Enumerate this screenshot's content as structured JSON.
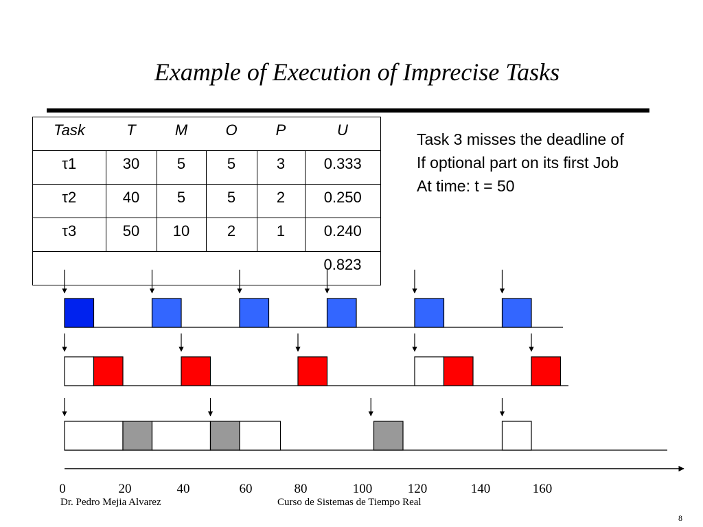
{
  "title": "Example of Execution of Imprecise Tasks",
  "table": {
    "headers": [
      "Task",
      "T",
      "M",
      "O",
      "P",
      "U"
    ],
    "rows": [
      {
        "task": "τ1",
        "T": "30",
        "M": "5",
        "O": "5",
        "P": "3",
        "U": "0.333"
      },
      {
        "task": "τ2",
        "T": "40",
        "M": "5",
        "O": "5",
        "P": "2",
        "U": "0.250"
      },
      {
        "task": "τ3",
        "T": "50",
        "M": "10",
        "O": "2",
        "P": "1",
        "U": "0.240"
      }
    ],
    "total": "0.823"
  },
  "note": {
    "line1": "Task 3 misses the deadline of",
    "line2": "If optional part on its first Job",
    "line3": "At time:  t = 50"
  },
  "chart_data": {
    "type": "gantt",
    "x_ticks": [
      0,
      20,
      40,
      60,
      80,
      100,
      120,
      140,
      160
    ],
    "colors": {
      "task1_first": "#0022ee",
      "task1": "#3366ff",
      "task2": "#ff0000",
      "task3": "#999999",
      "optional_empty": "#ffffff"
    },
    "rows": [
      {
        "task": "τ1",
        "arrivals": [
          0,
          30,
          60,
          90,
          120,
          150
        ],
        "blocks": [
          {
            "start": 0,
            "end": 10,
            "kind": "task1_first"
          },
          {
            "start": 30,
            "end": 40,
            "kind": "task1"
          },
          {
            "start": 60,
            "end": 70,
            "kind": "task1"
          },
          {
            "start": 90,
            "end": 100,
            "kind": "task1"
          },
          {
            "start": 120,
            "end": 130,
            "kind": "task1"
          },
          {
            "start": 150,
            "end": 160,
            "kind": "task1"
          }
        ]
      },
      {
        "task": "τ2",
        "arrivals": [
          0,
          40,
          80,
          120,
          160
        ],
        "blocks": [
          {
            "start": 0,
            "end": 10,
            "kind": "optional_empty"
          },
          {
            "start": 10,
            "end": 20,
            "kind": "task2"
          },
          {
            "start": 40,
            "end": 50,
            "kind": "task2"
          },
          {
            "start": 80,
            "end": 90,
            "kind": "task2"
          },
          {
            "start": 120,
            "end": 130,
            "kind": "optional_empty"
          },
          {
            "start": 130,
            "end": 140,
            "kind": "task2"
          },
          {
            "start": 160,
            "end": 170,
            "kind": "task2"
          }
        ]
      },
      {
        "task": "τ3",
        "arrivals": [
          0,
          50,
          105,
          150
        ],
        "blocks": [
          {
            "start": 0,
            "end": 20,
            "kind": "optional_empty"
          },
          {
            "start": 20,
            "end": 30,
            "kind": "task3"
          },
          {
            "start": 30,
            "end": 50,
            "kind": "optional_empty"
          },
          {
            "start": 50,
            "end": 60,
            "kind": "task3"
          },
          {
            "start": 60,
            "end": 74,
            "kind": "optional_empty"
          },
          {
            "start": 106,
            "end": 116,
            "kind": "task3"
          },
          {
            "start": 150,
            "end": 160,
            "kind": "optional_empty"
          }
        ]
      }
    ]
  },
  "footer": {
    "author": "Dr. Pedro Mejia Alvarez",
    "course": "Curso de Sistemas de Tiempo Real",
    "page": "8"
  }
}
